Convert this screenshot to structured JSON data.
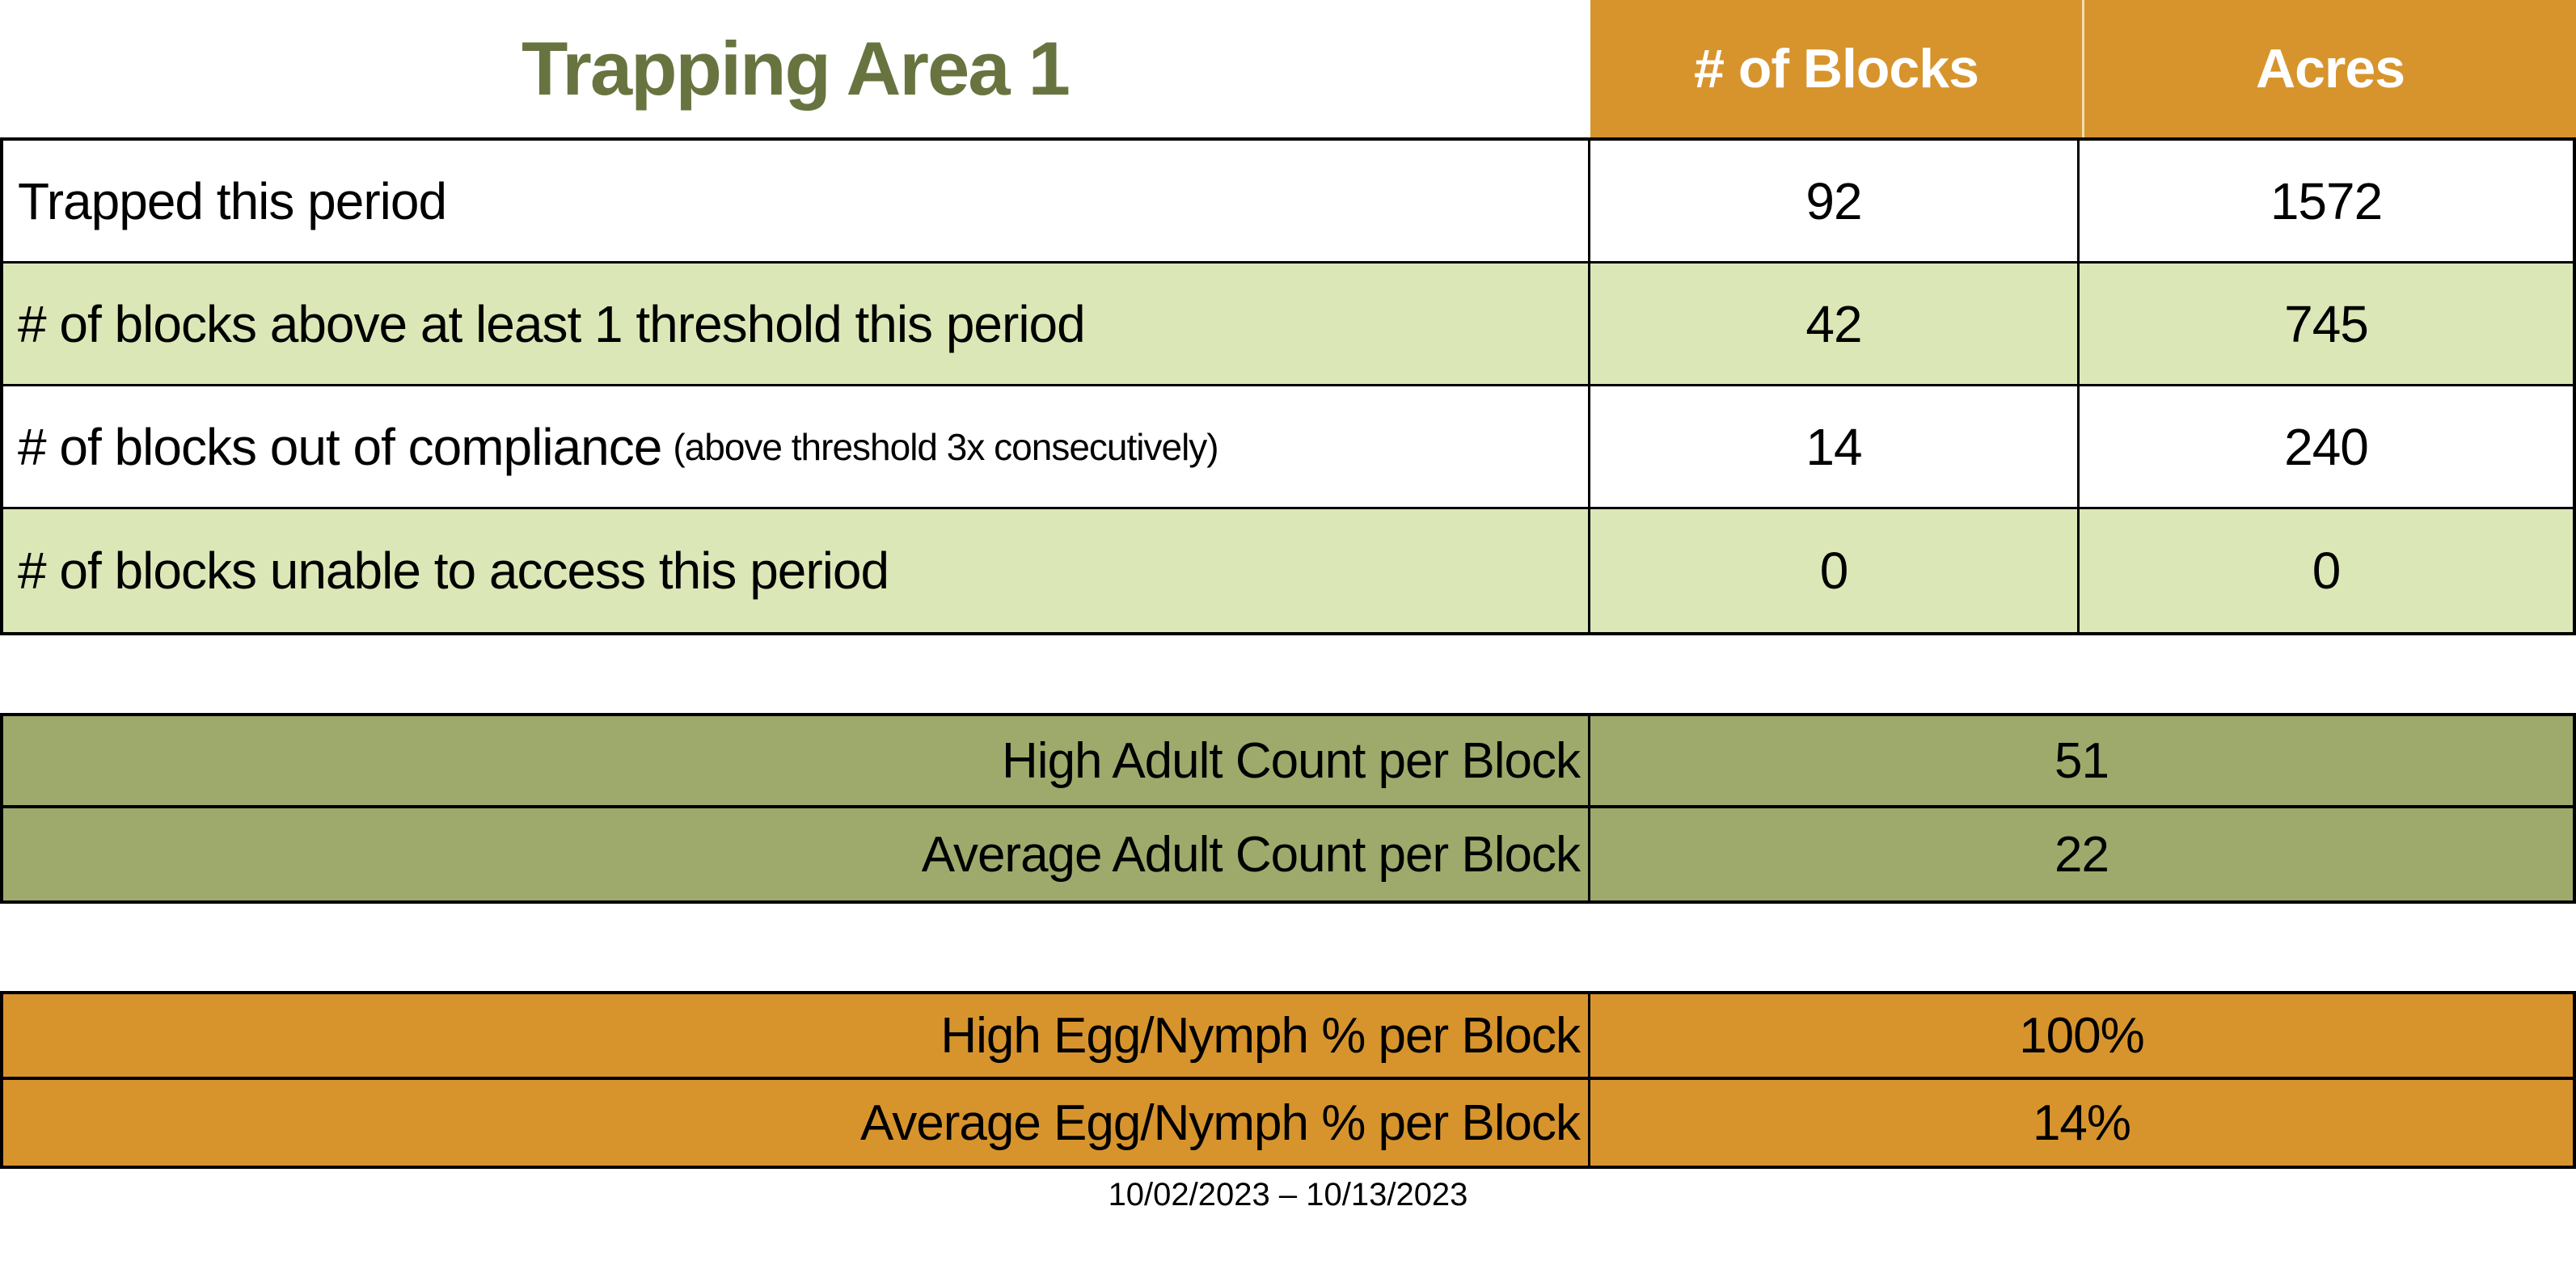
{
  "title": "Trapping Area 1",
  "colors": {
    "orange": "#D7942D",
    "olive": "#9DAA6B",
    "light_green": "#DBE7B6",
    "title_green": "#687440"
  },
  "main_table": {
    "columns": [
      "# of Blocks",
      "Acres"
    ],
    "rows": [
      {
        "label": "Trapped this period",
        "note": "",
        "blocks": "92",
        "acres": "1572"
      },
      {
        "label": "# of blocks above at least 1 threshold this period",
        "note": "",
        "blocks": "42",
        "acres": "745"
      },
      {
        "label": "# of blocks out of compliance",
        "note": "(above threshold 3x consecutively)",
        "blocks": "14",
        "acres": "240"
      },
      {
        "label": "# of blocks unable to access this period",
        "note": "",
        "blocks": "0",
        "acres": "0"
      }
    ]
  },
  "adult_table": {
    "rows": [
      {
        "label": "High Adult Count per Block",
        "value": "51"
      },
      {
        "label": "Average Adult Count per Block",
        "value": "22"
      }
    ]
  },
  "egg_table": {
    "rows": [
      {
        "label": "High Egg/Nymph % per Block",
        "value": "100%"
      },
      {
        "label": "Average Egg/Nymph % per Block",
        "value": "14%"
      }
    ]
  },
  "footer": {
    "date_range": "10/02/2023 – 10/13/2023"
  }
}
